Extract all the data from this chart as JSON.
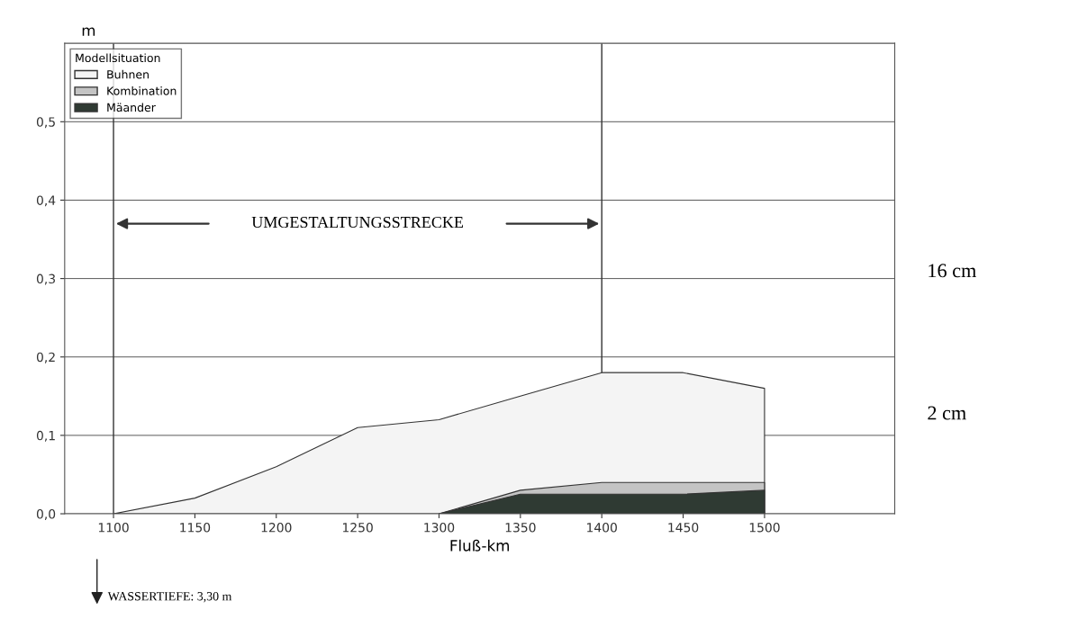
{
  "chart_data": {
    "type": "area",
    "x": [
      1100,
      1150,
      1200,
      1250,
      1300,
      1350,
      1400,
      1450,
      1500
    ],
    "series": [
      {
        "name": "Buhnen",
        "color": "#f4f4f4",
        "values": [
          0,
          0.02,
          0.06,
          0.11,
          0.12,
          0.15,
          0.18,
          0.18,
          0.16
        ]
      },
      {
        "name": "Kombination",
        "color": "#c4c4c4",
        "values": [
          null,
          null,
          null,
          null,
          0,
          0.03,
          0.04,
          0.04,
          0.04
        ]
      },
      {
        "name": "Mäander",
        "color": "#2f3a33",
        "values": [
          null,
          null,
          null,
          null,
          0,
          0.025,
          0.025,
          0.025,
          0.03
        ]
      }
    ],
    "xlabel": "Fluß-km",
    "ylabel": "m",
    "legend_title": "Modellsituation",
    "legend": "top left",
    "xlim": [
      1070,
      1580
    ],
    "xticks": [
      1100,
      1150,
      1200,
      1250,
      1300,
      1350,
      1400,
      1450,
      1500
    ],
    "ylim": [
      0,
      0.6
    ],
    "yticks": [
      {
        "value": 0,
        "label": "0,0"
      },
      {
        "value": 0.1,
        "label": "0,1"
      },
      {
        "value": 0.2,
        "label": "0,2"
      },
      {
        "value": 0.3,
        "label": "0,3"
      },
      {
        "value": 0.4,
        "label": "0,4"
      },
      {
        "value": 0.5,
        "label": "0,5"
      }
    ],
    "ref_lines": [
      {
        "axis": "x",
        "value": 1100
      },
      {
        "axis": "x",
        "value": 1400
      }
    ],
    "annotations": [
      "UMGESTALTUNGSSTRECKE",
      "16 cm",
      "2 cm",
      "WASSERTIEFE: 3,30 m"
    ],
    "grid": "y"
  }
}
